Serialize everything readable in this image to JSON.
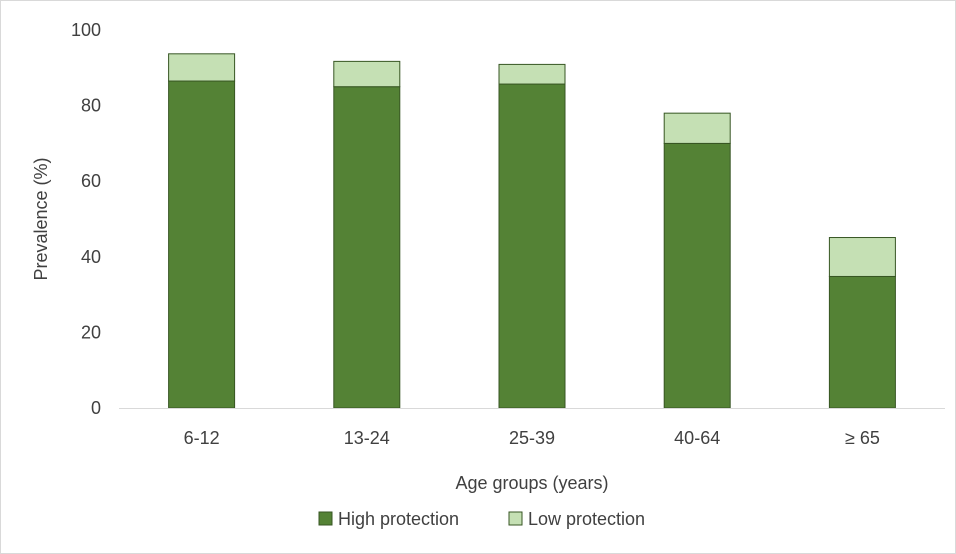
{
  "chart_data": {
    "type": "bar",
    "stacked": true,
    "categories": [
      "6-12",
      "13-24",
      "25-39",
      "40-64",
      "≥ 65"
    ],
    "series": [
      {
        "name": "High protection",
        "values": [
          86.5,
          85.0,
          85.7,
          70.0,
          34.8
        ],
        "color": "#548235"
      },
      {
        "name": "Low protection",
        "values": [
          7.2,
          6.7,
          5.2,
          8.0,
          10.3
        ],
        "color": "#c5e0b4"
      }
    ],
    "xlabel": "Age groups (years)",
    "ylabel": "Prevalence (%)",
    "ylim": [
      0,
      100
    ],
    "yticks": [
      0,
      20,
      40,
      60,
      80,
      100
    ],
    "grid": false,
    "legend": "bottom",
    "bar_stroke": "#375623"
  }
}
